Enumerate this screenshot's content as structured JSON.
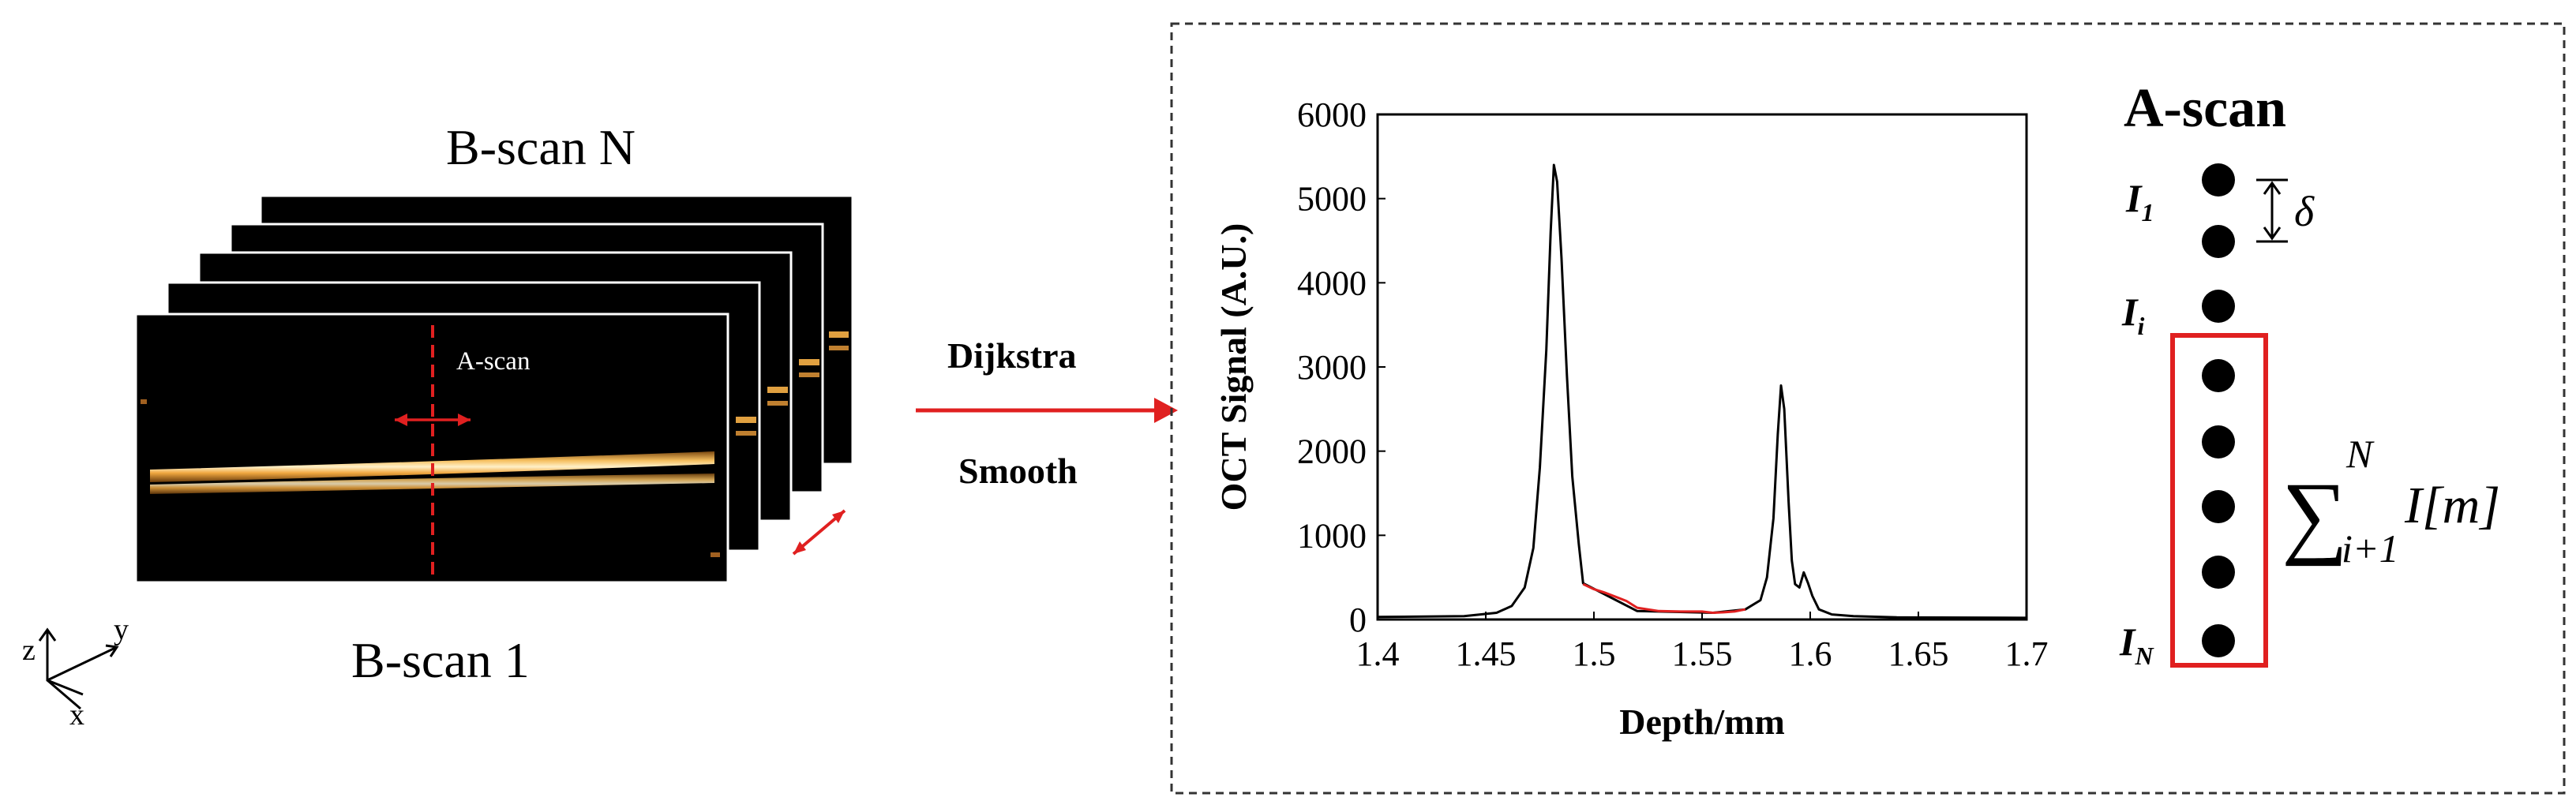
{
  "bscan_stack": {
    "top_label": "B-scan N",
    "bottom_label": "B-scan 1",
    "ascan_label": "A-scan"
  },
  "axes_gizmo": {
    "z": "z",
    "y": "y",
    "x": "x"
  },
  "process": {
    "step1": "Dijkstra",
    "step2": "Smooth"
  },
  "chart_data": {
    "type": "line",
    "xlabel": "Depth/mm",
    "ylabel": "OCT Signal (A.U.)",
    "xlim": [
      1.4,
      1.7
    ],
    "ylim": [
      0,
      6000
    ],
    "xticks": [
      "1.4",
      "1.45",
      "1.5",
      "1.55",
      "1.6",
      "1.65",
      "1.7"
    ],
    "yticks": [
      "0",
      "1000",
      "2000",
      "3000",
      "4000",
      "5000",
      "6000"
    ],
    "grid": false,
    "series": [
      {
        "color": "#000000",
        "x": [
          1.4,
          1.44,
          1.455,
          1.462,
          1.468,
          1.472,
          1.475,
          1.478,
          1.48,
          1.4815,
          1.483,
          1.485,
          1.4875,
          1.49,
          1.493,
          1.495,
          1.52,
          1.555,
          1.57,
          1.577,
          1.58,
          1.583,
          1.585,
          1.5865,
          1.588,
          1.59,
          1.5915,
          1.593,
          1.595,
          1.597,
          1.599,
          1.601,
          1.604,
          1.61,
          1.62,
          1.64,
          1.7
        ],
        "y": [
          30,
          40,
          80,
          160,
          380,
          850,
          1800,
          3200,
          4600,
          5400,
          5200,
          4300,
          2900,
          1700,
          900,
          430,
          100,
          80,
          120,
          230,
          500,
          1200,
          2200,
          2780,
          2500,
          1400,
          700,
          420,
          380,
          560,
          430,
          280,
          120,
          60,
          40,
          25,
          20
        ]
      },
      {
        "color": "#e02020",
        "x": [
          1.495,
          1.5,
          1.505,
          1.51,
          1.515,
          1.52,
          1.53,
          1.54,
          1.55,
          1.555,
          1.56,
          1.565,
          1.57
        ],
        "y": [
          420,
          360,
          320,
          270,
          220,
          140,
          100,
          95,
          95,
          80,
          85,
          95,
          120
        ]
      }
    ]
  },
  "ascan_panel": {
    "title": "A-scan",
    "label_i1": "I",
    "label_i1_sub": "1",
    "label_ii": "I",
    "label_ii_sub": "i",
    "label_in": "I",
    "label_in_sub": "N",
    "delta": "δ",
    "sum_symbol": "∑",
    "sum_upper": "N",
    "sum_lower": "i+1",
    "sum_term": "I[m]",
    "sum_bracket_open": "[",
    "sum_bracket_close": "]"
  }
}
